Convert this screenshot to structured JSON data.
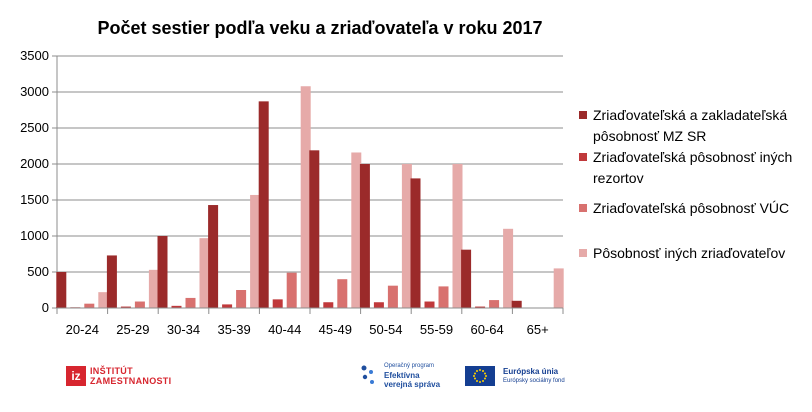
{
  "chart_data": {
    "type": "bar",
    "title": "Počet sestier podľa veku a zriaďovateľa v roku 2017",
    "xlabel": "",
    "ylabel": "",
    "ylim": [
      0,
      3500
    ],
    "yticks": [
      "0",
      "500",
      "1000",
      "1500",
      "2000",
      "2500",
      "3000",
      "3500"
    ],
    "grid": true,
    "legend_position": "right",
    "categories": [
      "20-24",
      "25-29",
      "30-34",
      "35-39",
      "40-44",
      "45-49",
      "50-54",
      "55-59",
      "60-64",
      "65+"
    ],
    "series": [
      {
        "name": "Zriaďovateľská a zakladateľská pôsobnosť MZ SR",
        "legend_lines": [
          "Zriaďovateľská a zakladateľská",
          "pôsobnosť MZ SR"
        ],
        "color": "#9b2a2a",
        "values": [
          500,
          730,
          1000,
          1430,
          2870,
          2190,
          2000,
          1800,
          810,
          100
        ]
      },
      {
        "name": "Zriaďovateľská pôsobnosť iných rezortov",
        "legend_lines": [
          "Zriaďovateľská pôsobnosť iných",
          "rezortov"
        ],
        "color": "#c0393b",
        "values": [
          10,
          20,
          30,
          50,
          120,
          80,
          80,
          90,
          20,
          0
        ]
      },
      {
        "name": "Zriaďovateľská pôsobnosť VÚC",
        "legend_lines": [
          "Zriaďovateľská pôsobnosť VÚC"
        ],
        "color": "#d8716f",
        "values": [
          60,
          90,
          140,
          250,
          490,
          400,
          310,
          300,
          110,
          0
        ]
      },
      {
        "name": "Pôsobnosť iných zriaďovateľov",
        "legend_lines": [
          "Pôsobnosť iných zriaďovateľov"
        ],
        "color": "#e6aaa9",
        "values": [
          220,
          530,
          970,
          1570,
          3080,
          2160,
          2000,
          2000,
          1100,
          550
        ]
      }
    ]
  },
  "logos": {
    "iz": {
      "badge": "iz",
      "line1": "INŠTITÚT",
      "line2": "ZAMESTNANOSTI"
    },
    "op": {
      "line1": "Operačný program",
      "line2": "Efektívna",
      "line3": "verejná správa"
    },
    "eu": {
      "line1": "Európska únia",
      "line2": "Európsky sociálny fond"
    }
  }
}
